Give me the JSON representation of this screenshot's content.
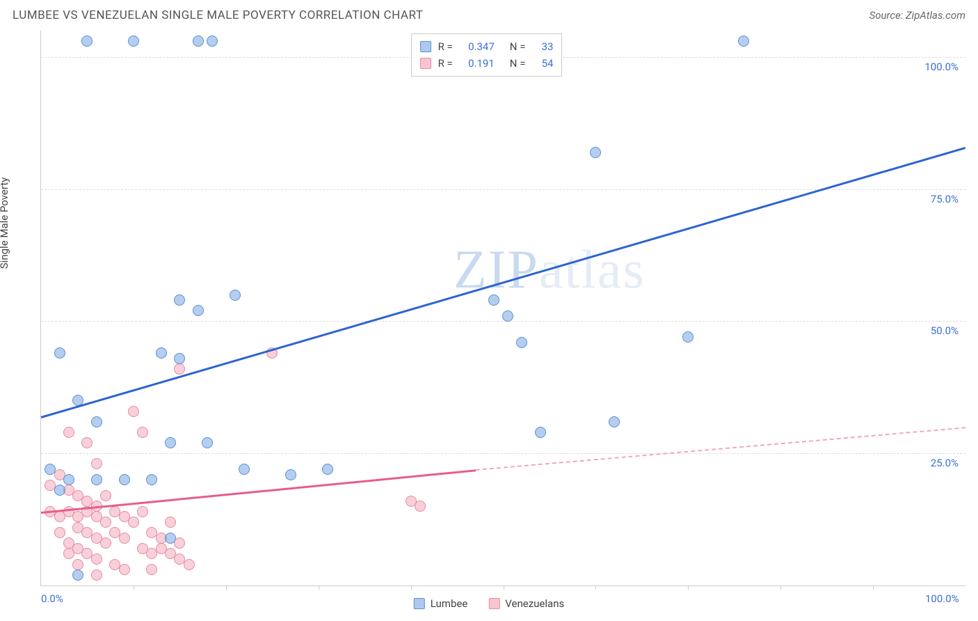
{
  "header": {
    "title": "LUMBEE VS VENEZUELAN SINGLE MALE POVERTY CORRELATION CHART",
    "source": "Source: ZipAtlas.com"
  },
  "chart": {
    "type": "scatter",
    "ylabel": "Single Male Poverty",
    "xlim": [
      0,
      100
    ],
    "ylim": [
      0,
      105
    ],
    "x_ticks": [
      0,
      100
    ],
    "x_tick_labels": [
      "0.0%",
      "100.0%"
    ],
    "x_minor_ticks": [
      10,
      20,
      30,
      40,
      50,
      60,
      70,
      80,
      90
    ],
    "y_ticks": [
      25,
      50,
      75,
      100
    ],
    "y_tick_labels": [
      "25.0%",
      "50.0%",
      "75.0%",
      "100.0%"
    ],
    "background_color": "#ffffff",
    "grid_color": "#dddddd",
    "axis_color": "#cccccc",
    "tick_label_color": "#3b6fd6",
    "watermark_text_1": "ZIP",
    "watermark_text_2": "atlas"
  },
  "stats_legend": {
    "rows": [
      {
        "swatch": "blue",
        "r_label": "R =",
        "r_val": "0.347",
        "n_label": "N =",
        "n_val": "33"
      },
      {
        "swatch": "pink",
        "r_label": "R =",
        "r_val": "0.191",
        "n_label": "N =",
        "n_val": "54"
      }
    ]
  },
  "bottom_legend": {
    "items": [
      {
        "swatch": "blue",
        "label": "Lumbee"
      },
      {
        "swatch": "pink",
        "label": "Venezuelans"
      }
    ]
  },
  "series": {
    "lumbee": {
      "color": "#6a9bd8",
      "fill": "rgba(120,165,225,0.55)",
      "points": [
        [
          5,
          103
        ],
        [
          10,
          103
        ],
        [
          17,
          103
        ],
        [
          18.5,
          103
        ],
        [
          76,
          103
        ],
        [
          60,
          82
        ],
        [
          21,
          55
        ],
        [
          15,
          54
        ],
        [
          17,
          52
        ],
        [
          49,
          54
        ],
        [
          50.5,
          51
        ],
        [
          2,
          44
        ],
        [
          15,
          43
        ],
        [
          52,
          46
        ],
        [
          4,
          35
        ],
        [
          13,
          44
        ],
        [
          6,
          31
        ],
        [
          62,
          31
        ],
        [
          54,
          29
        ],
        [
          14,
          27
        ],
        [
          18,
          27
        ],
        [
          22,
          22
        ],
        [
          31,
          22
        ],
        [
          27,
          21
        ],
        [
          1,
          22
        ],
        [
          3,
          20
        ],
        [
          6,
          20
        ],
        [
          9,
          20
        ],
        [
          12,
          20
        ],
        [
          70,
          47
        ],
        [
          14,
          9
        ],
        [
          4,
          2
        ],
        [
          2,
          18
        ]
      ],
      "trend": {
        "x1": 0,
        "y1": 32,
        "x2": 100,
        "y2": 83,
        "style": "solid"
      }
    },
    "venezuelans": {
      "color": "#e78aa0",
      "fill": "rgba(240,150,170,0.45)",
      "points": [
        [
          25,
          44
        ],
        [
          15,
          41
        ],
        [
          10,
          33
        ],
        [
          11,
          29
        ],
        [
          3,
          29
        ],
        [
          5,
          27
        ],
        [
          6,
          23
        ],
        [
          2,
          21
        ],
        [
          1,
          19
        ],
        [
          3,
          18
        ],
        [
          4,
          17
        ],
        [
          5,
          16
        ],
        [
          6,
          15
        ],
        [
          7,
          17
        ],
        [
          1,
          14
        ],
        [
          2,
          13
        ],
        [
          3,
          14
        ],
        [
          4,
          13
        ],
        [
          5,
          14
        ],
        [
          6,
          13
        ],
        [
          7,
          12
        ],
        [
          8,
          14
        ],
        [
          9,
          13
        ],
        [
          10,
          12
        ],
        [
          11,
          14
        ],
        [
          12,
          10
        ],
        [
          13,
          9
        ],
        [
          14,
          12
        ],
        [
          15,
          8
        ],
        [
          4,
          11
        ],
        [
          5,
          10
        ],
        [
          6,
          9
        ],
        [
          7,
          8
        ],
        [
          8,
          10
        ],
        [
          9,
          9
        ],
        [
          11,
          7
        ],
        [
          12,
          6
        ],
        [
          13,
          7
        ],
        [
          14,
          6
        ],
        [
          15,
          5
        ],
        [
          3,
          8
        ],
        [
          4,
          7
        ],
        [
          5,
          6
        ],
        [
          6,
          5
        ],
        [
          8,
          4
        ],
        [
          41,
          15
        ],
        [
          40,
          16
        ],
        [
          2,
          10
        ],
        [
          3,
          6
        ],
        [
          4,
          4
        ],
        [
          6,
          2
        ],
        [
          9,
          3
        ],
        [
          12,
          3
        ],
        [
          16,
          4
        ]
      ],
      "trend_solid": {
        "x1": 0,
        "y1": 14,
        "x2": 47,
        "y2": 22
      },
      "trend_dash": {
        "x1": 47,
        "y1": 22,
        "x2": 100,
        "y2": 30
      }
    }
  }
}
